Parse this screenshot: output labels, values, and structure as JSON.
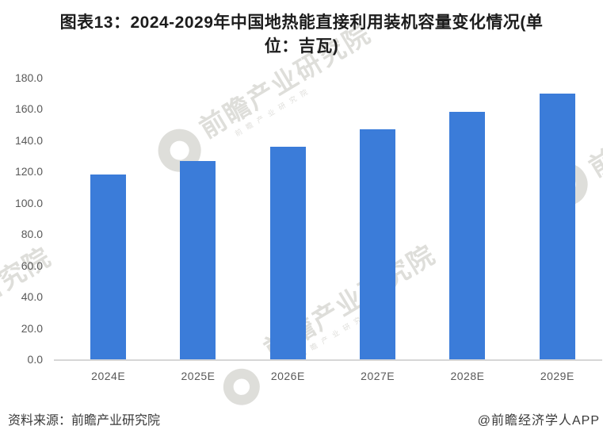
{
  "title": {
    "full": "图表13：2024-2029年中国地热能直接利用装机容量变化情况(单位：吉瓦)",
    "line1": "图表13：2024-2029年中国地热能直接利用装机容量变化情况(单",
    "line2": "位：吉瓦)"
  },
  "chart_data": {
    "type": "bar",
    "title": "图表13：2024-2029年中国地热能直接利用装机容量变化情况(单位：吉瓦)",
    "unit": "吉瓦",
    "categories": [
      "2024E",
      "2025E",
      "2026E",
      "2027E",
      "2028E",
      "2029E"
    ],
    "values": [
      118,
      127,
      136,
      147,
      158,
      170
    ],
    "ylim": [
      0,
      180
    ],
    "ytick_step": 20,
    "yticks": [
      "180.0",
      "160.0",
      "140.0",
      "120.0",
      "100.0",
      "80.0",
      "60.0",
      "40.0",
      "20.0",
      "0.0"
    ],
    "xlabel": "",
    "ylabel": "",
    "grid": false,
    "legend": false,
    "bar_color": "#3b7cd9"
  },
  "footer": {
    "source": "资料来源：前瞻产业研究院",
    "credit": "@前瞻经济学人APP"
  },
  "watermark": {
    "text": "前瞻产业研究院"
  },
  "colors": {
    "bar": "#3b7cd9",
    "axis_line": "#d6d6d6",
    "tick_text": "#595959",
    "title_text": "#1c1c1c",
    "footer_text": "#3a3a3a",
    "watermark": "#d7d6d2"
  }
}
